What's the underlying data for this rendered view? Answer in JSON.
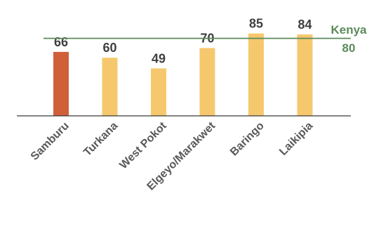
{
  "chart_data": {
    "type": "bar",
    "categories": [
      "Samburu",
      "Turkana",
      "West Pokot",
      "Elgeyo/Marakwet",
      "Baringo",
      "Laikipia"
    ],
    "values": [
      66,
      60,
      49,
      70,
      85,
      84
    ],
    "highlight_index": 0,
    "reference_line": {
      "name": "Kenya",
      "value": 80
    },
    "title": "",
    "xlabel": "",
    "ylabel": "",
    "grid": false,
    "legend": "none"
  },
  "colors": {
    "highlight_bar": "#d0603a",
    "bar": "#f6c86e",
    "reference_line": "#5c8a5c",
    "axis": "#3a3a3a"
  }
}
